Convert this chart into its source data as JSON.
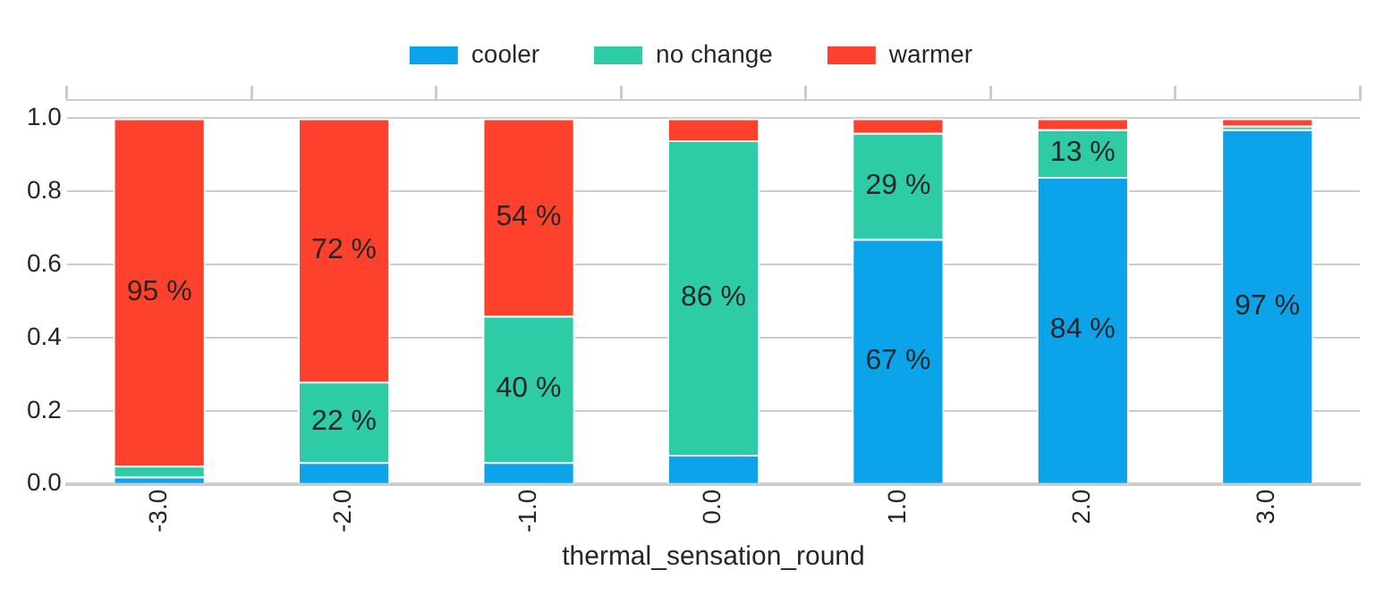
{
  "chart_data": {
    "type": "bar",
    "stacked": true,
    "xlabel": "thermal_sensation_round",
    "categories": [
      "-3.0",
      "-2.0",
      "-1.0",
      "0.0",
      "1.0",
      "2.0",
      "3.0"
    ],
    "series": [
      {
        "name": "cooler",
        "color": "#0ba4ea",
        "values": [
          0.02,
          0.06,
          0.06,
          0.08,
          0.67,
          0.84,
          0.97
        ],
        "value_labels": [
          null,
          null,
          null,
          null,
          "67 %",
          "84 %",
          "97 %"
        ]
      },
      {
        "name": "no change",
        "color": "#2ecba7",
        "values": [
          0.03,
          0.22,
          0.4,
          0.86,
          0.29,
          0.13,
          0.01
        ],
        "value_labels": [
          null,
          "22 %",
          "40 %",
          "86 %",
          "29 %",
          "13 %",
          null
        ]
      },
      {
        "name": "warmer",
        "color": "#fd412c",
        "values": [
          0.95,
          0.72,
          0.54,
          0.06,
          0.04,
          0.03,
          0.02
        ],
        "value_labels": [
          "95 %",
          "72 %",
          "54 %",
          null,
          null,
          null,
          null
        ]
      }
    ],
    "ylim": [
      0,
      1.05
    ],
    "yticks": [
      {
        "value": 0,
        "label": "0.0"
      },
      0.2,
      0.4,
      0.6,
      0.8,
      {
        "value": 1,
        "label": "1.0"
      }
    ],
    "grid": "y",
    "legend": "top"
  }
}
